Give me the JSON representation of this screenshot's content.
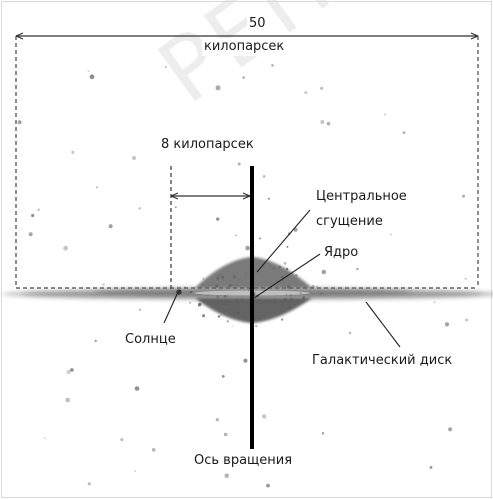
{
  "labels": {
    "width_value": "50",
    "width_unit": "килопарсек",
    "sun_distance": "8 килопарсек",
    "central_bulge_line1": "Центральное",
    "central_bulge_line2": "сгущение",
    "nucleus": "Ядро",
    "sun": "Солнце",
    "galactic_disk": "Галактический диск",
    "rotation_axis": "Ось вращения"
  },
  "watermark": "РЕПОЗИТОРИЙ",
  "colors": {
    "ink": "#1a1a1a",
    "disk": "#6f6f6f",
    "dashed_line": "#444444",
    "background": "#ffffff"
  }
}
